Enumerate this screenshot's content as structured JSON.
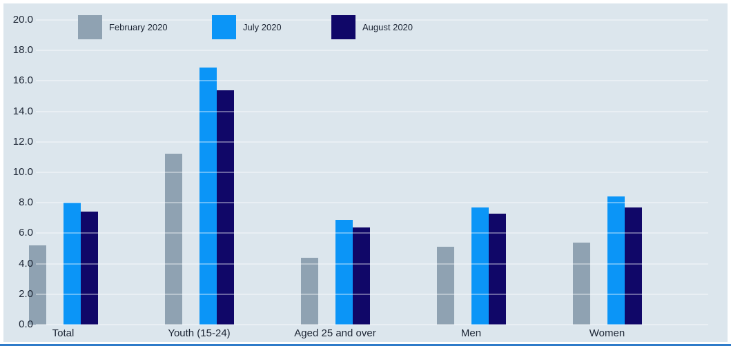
{
  "chart_data": {
    "type": "bar",
    "title": "",
    "categories": [
      "Total",
      "Youth (15-24)",
      "Aged 25 and over",
      "Men",
      "Women"
    ],
    "series": [
      {
        "name": "February 2020",
        "color": "#8fa2b2",
        "values": [
          5.2,
          11.2,
          4.4,
          5.1,
          5.4
        ]
      },
      {
        "name": "July 2020",
        "color": "#0b95f7",
        "values": [
          8.0,
          16.9,
          6.9,
          7.7,
          8.4
        ]
      },
      {
        "name": "August 2020",
        "color": "#100768",
        "values": [
          7.4,
          15.4,
          6.4,
          7.3,
          7.7
        ]
      }
    ],
    "ylim": [
      0,
      20
    ],
    "ytick_step": 2,
    "ytick_labels": [
      "0.0",
      "2.0",
      "4.0",
      "6.0",
      "8.0",
      "10.0",
      "12.0",
      "14.0",
      "16.0",
      "18.0",
      "20.0"
    ],
    "xlabel": "",
    "ylabel": "",
    "grid": true,
    "legend_position": "top"
  },
  "colors": {
    "panel_background": "#dce6ed",
    "outer_background": "#ffffff",
    "text": "#1b2433",
    "bottom_rule": "#2e7bc9"
  }
}
